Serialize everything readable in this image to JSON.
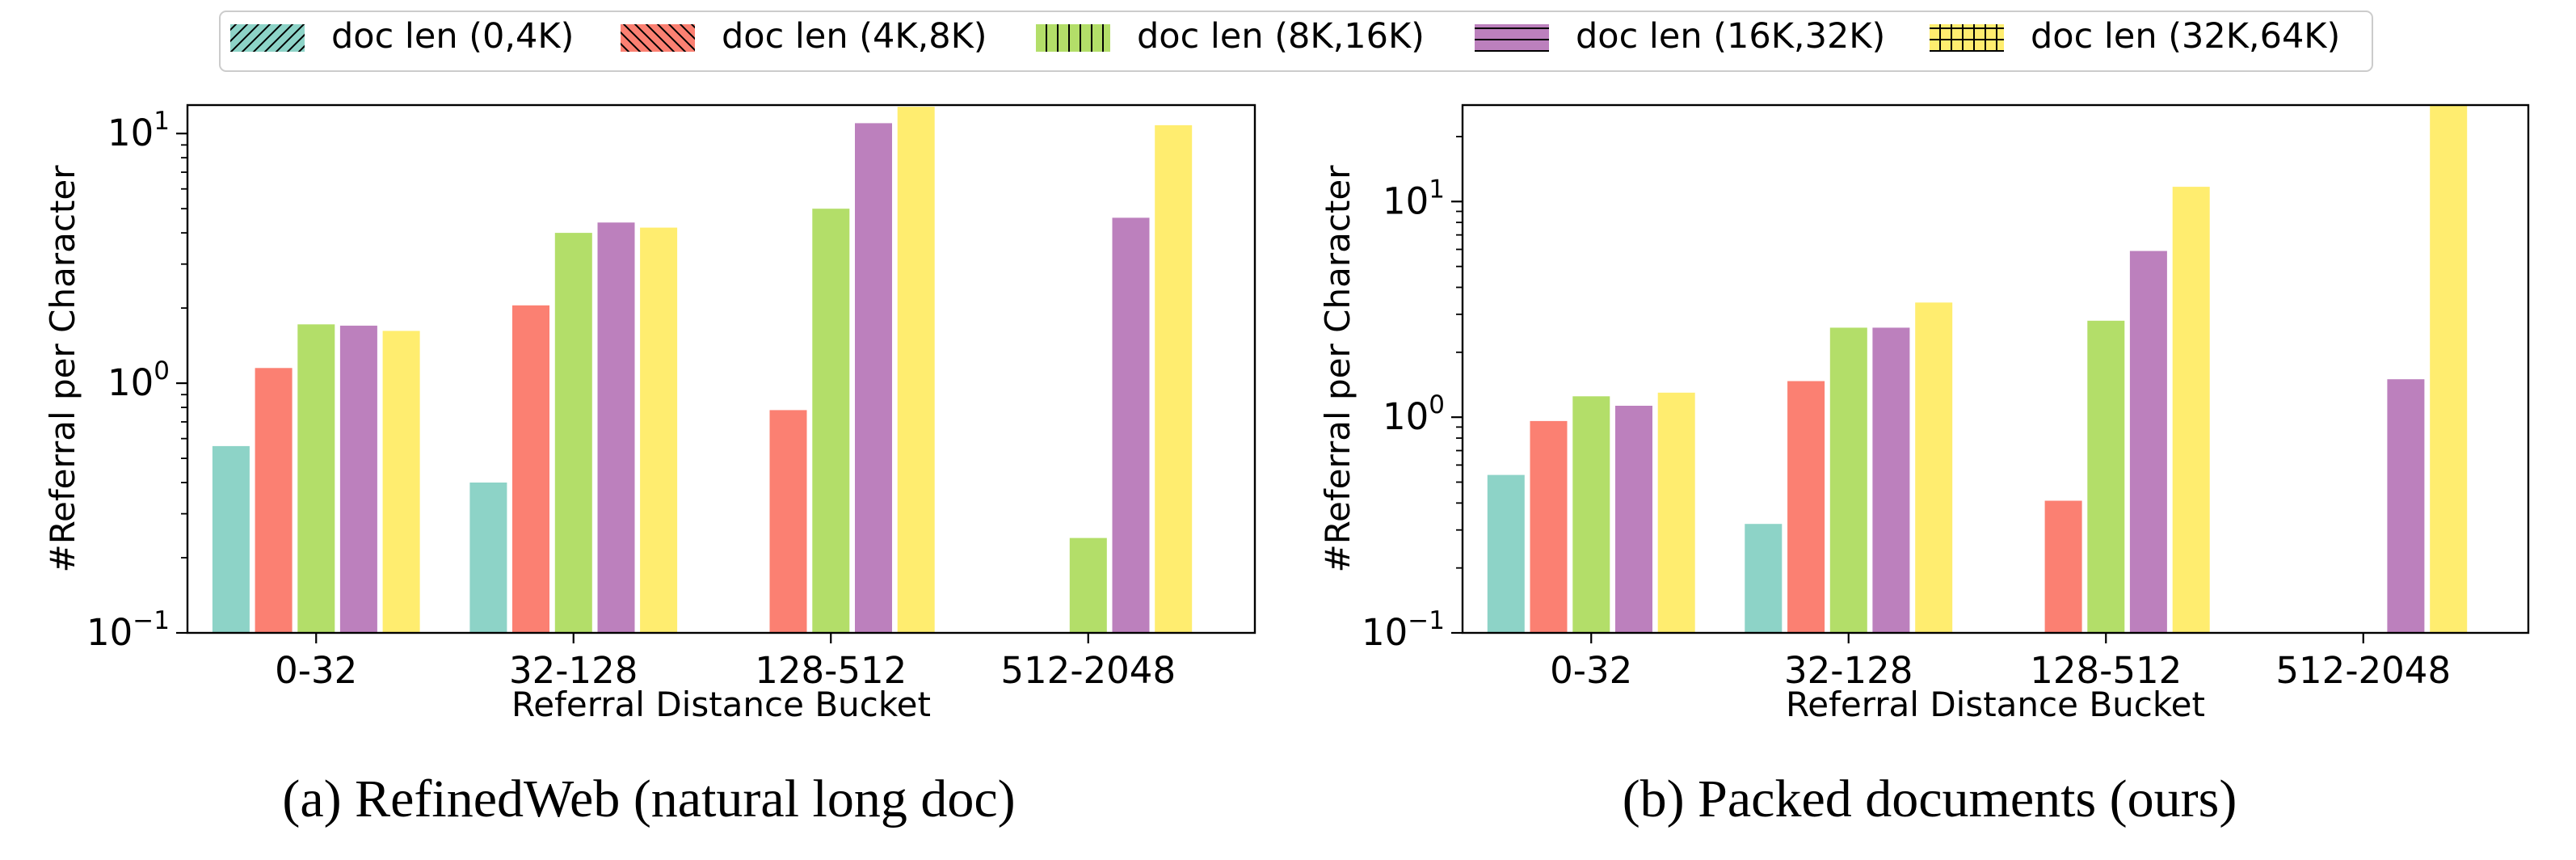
{
  "legend": {
    "placement": "top-center",
    "entries": [
      {
        "label": "doc len (0,4K)",
        "color": "#8dd3c7",
        "hatch": "/"
      },
      {
        "label": "doc len (4K,8K)",
        "color": "#fb8072",
        "hatch": "\\"
      },
      {
        "label": "doc len (8K,16K)",
        "color": "#b3de69",
        "hatch": "|"
      },
      {
        "label": "doc len (16K,32K)",
        "color": "#bc80bd",
        "hatch": "-"
      },
      {
        "label": "doc len (32K,64K)",
        "color": "#ffed6f",
        "hatch": "+"
      }
    ]
  },
  "chart_data": [
    {
      "type": "bar",
      "caption": "(a) RefinedWeb (natural long doc)",
      "xlabel": "Referral Distance Bucket",
      "ylabel": "#Referral per Character",
      "yscale": "log",
      "ylim": [
        0.1,
        13
      ],
      "yticks": [
        {
          "value": 0.1,
          "base": "10",
          "exp": "−1"
        },
        {
          "value": 1,
          "base": "10",
          "exp": "0"
        },
        {
          "value": 10,
          "base": "10",
          "exp": "1"
        }
      ],
      "grid": false,
      "categories": [
        "0-32",
        "32-128",
        "128-512",
        "512-2048"
      ],
      "series": [
        {
          "name": "doc len (0,4K)",
          "values": [
            0.56,
            0.4,
            null,
            null
          ]
        },
        {
          "name": "doc len (4K,8K)",
          "values": [
            1.15,
            2.05,
            0.78,
            null
          ]
        },
        {
          "name": "doc len (8K,16K)",
          "values": [
            1.72,
            4.0,
            5.0,
            0.24
          ]
        },
        {
          "name": "doc len (16K,32K)",
          "values": [
            1.7,
            4.4,
            11.0,
            4.6
          ]
        },
        {
          "name": "doc len (32K,64K)",
          "values": [
            1.62,
            4.2,
            12.8,
            10.8
          ]
        }
      ]
    },
    {
      "type": "bar",
      "caption": "(b) Packed documents (ours)",
      "xlabel": "Referral Distance Bucket",
      "ylabel": "#Referral per Character",
      "yscale": "log",
      "ylim": [
        0.1,
        28
      ],
      "yticks": [
        {
          "value": 0.1,
          "base": "10",
          "exp": "−1"
        },
        {
          "value": 1,
          "base": "10",
          "exp": "0"
        },
        {
          "value": 10,
          "base": "10",
          "exp": "1"
        }
      ],
      "grid": false,
      "categories": [
        "0-32",
        "32-128",
        "128-512",
        "512-2048"
      ],
      "series": [
        {
          "name": "doc len (0,4K)",
          "values": [
            0.54,
            0.32,
            null,
            null
          ]
        },
        {
          "name": "doc len (4K,8K)",
          "values": [
            0.96,
            1.47,
            0.41,
            null
          ]
        },
        {
          "name": "doc len (8K,16K)",
          "values": [
            1.25,
            2.6,
            2.8,
            null
          ]
        },
        {
          "name": "doc len (16K,32K)",
          "values": [
            1.13,
            2.6,
            5.9,
            1.5
          ]
        },
        {
          "name": "doc len (32K,64K)",
          "values": [
            1.3,
            3.4,
            11.7,
            28.0
          ]
        }
      ]
    }
  ]
}
